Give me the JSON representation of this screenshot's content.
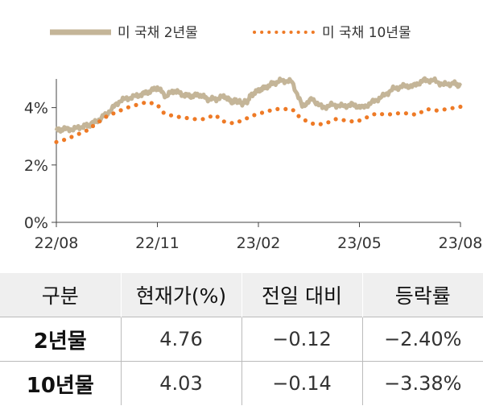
{
  "chart_data": {
    "type": "line",
    "legend": {
      "placement": "top",
      "entries": [
        "미 국채 2년물",
        "미 국채 10년물"
      ]
    },
    "x_ticks": [
      "22/08",
      "22/11",
      "23/02",
      "23/05",
      "23/08"
    ],
    "y_ticks": [
      "0%",
      "2%",
      "4%"
    ],
    "ylim": [
      0,
      5
    ],
    "grid": false,
    "series": [
      {
        "name": "미 국채 2년물",
        "color": "#c4b598",
        "style": "solid",
        "x": [
          0,
          0.2,
          0.5,
          0.8,
          1.0,
          1.3,
          1.6,
          1.9,
          2.2,
          2.5,
          2.75,
          3.0,
          3.25,
          3.5,
          3.75,
          4.0,
          4.25,
          4.5,
          4.75,
          5.0,
          5.2,
          5.35,
          5.5,
          5.65,
          5.8,
          6.0,
          6.2,
          6.45,
          6.7,
          7.0,
          7.3,
          7.6,
          7.9,
          8.2,
          8.5,
          8.8,
          9.1,
          9.4,
          9.7,
          10.0,
          10.3,
          10.6,
          10.9,
          11.2,
          11.5,
          11.8,
          12.0
        ],
        "values": [
          3.2,
          3.25,
          3.25,
          3.35,
          3.4,
          3.6,
          3.9,
          4.25,
          4.35,
          4.45,
          4.55,
          4.7,
          4.4,
          4.6,
          4.45,
          4.4,
          4.45,
          4.3,
          4.3,
          4.4,
          4.2,
          4.25,
          4.15,
          4.2,
          4.45,
          4.6,
          4.7,
          4.85,
          4.95,
          4.9,
          4.05,
          4.3,
          4.0,
          4.1,
          4.05,
          4.1,
          4.0,
          4.2,
          4.4,
          4.65,
          4.75,
          4.75,
          4.95,
          4.95,
          4.8,
          4.85,
          4.76
        ]
      },
      {
        "name": "미 국채 10년물",
        "color": "#ee7a26",
        "style": "dotted",
        "x": [
          0,
          0.3,
          0.6,
          0.9,
          1.2,
          1.5,
          1.8,
          2.1,
          2.4,
          2.7,
          3.0,
          3.2,
          3.5,
          3.8,
          4.1,
          4.4,
          4.7,
          5.0,
          5.3,
          5.6,
          5.9,
          6.2,
          6.5,
          6.8,
          7.0,
          7.2,
          7.4,
          7.7,
          8.0,
          8.3,
          8.6,
          8.9,
          9.2,
          9.5,
          9.8,
          10.1,
          10.4,
          10.7,
          11.0,
          11.3,
          11.6,
          12.0
        ],
        "values": [
          2.8,
          2.9,
          3.05,
          3.2,
          3.45,
          3.7,
          3.85,
          4.0,
          4.1,
          4.2,
          4.1,
          3.8,
          3.7,
          3.65,
          3.6,
          3.6,
          3.75,
          3.5,
          3.45,
          3.6,
          3.75,
          3.85,
          3.95,
          3.95,
          3.95,
          3.7,
          3.55,
          3.4,
          3.45,
          3.6,
          3.55,
          3.5,
          3.65,
          3.8,
          3.75,
          3.8,
          3.8,
          3.75,
          3.95,
          3.9,
          3.95,
          4.03
        ]
      }
    ]
  },
  "table": {
    "headers": [
      "구분",
      "현재가(%)",
      "전일 대비",
      "등락률"
    ],
    "rows": [
      {
        "label": "2년물",
        "price": "4.76",
        "change": "−0.12",
        "rate": "−2.40%"
      },
      {
        "label": "10년물",
        "price": "4.03",
        "change": "−0.14",
        "rate": "−3.38%"
      }
    ]
  }
}
